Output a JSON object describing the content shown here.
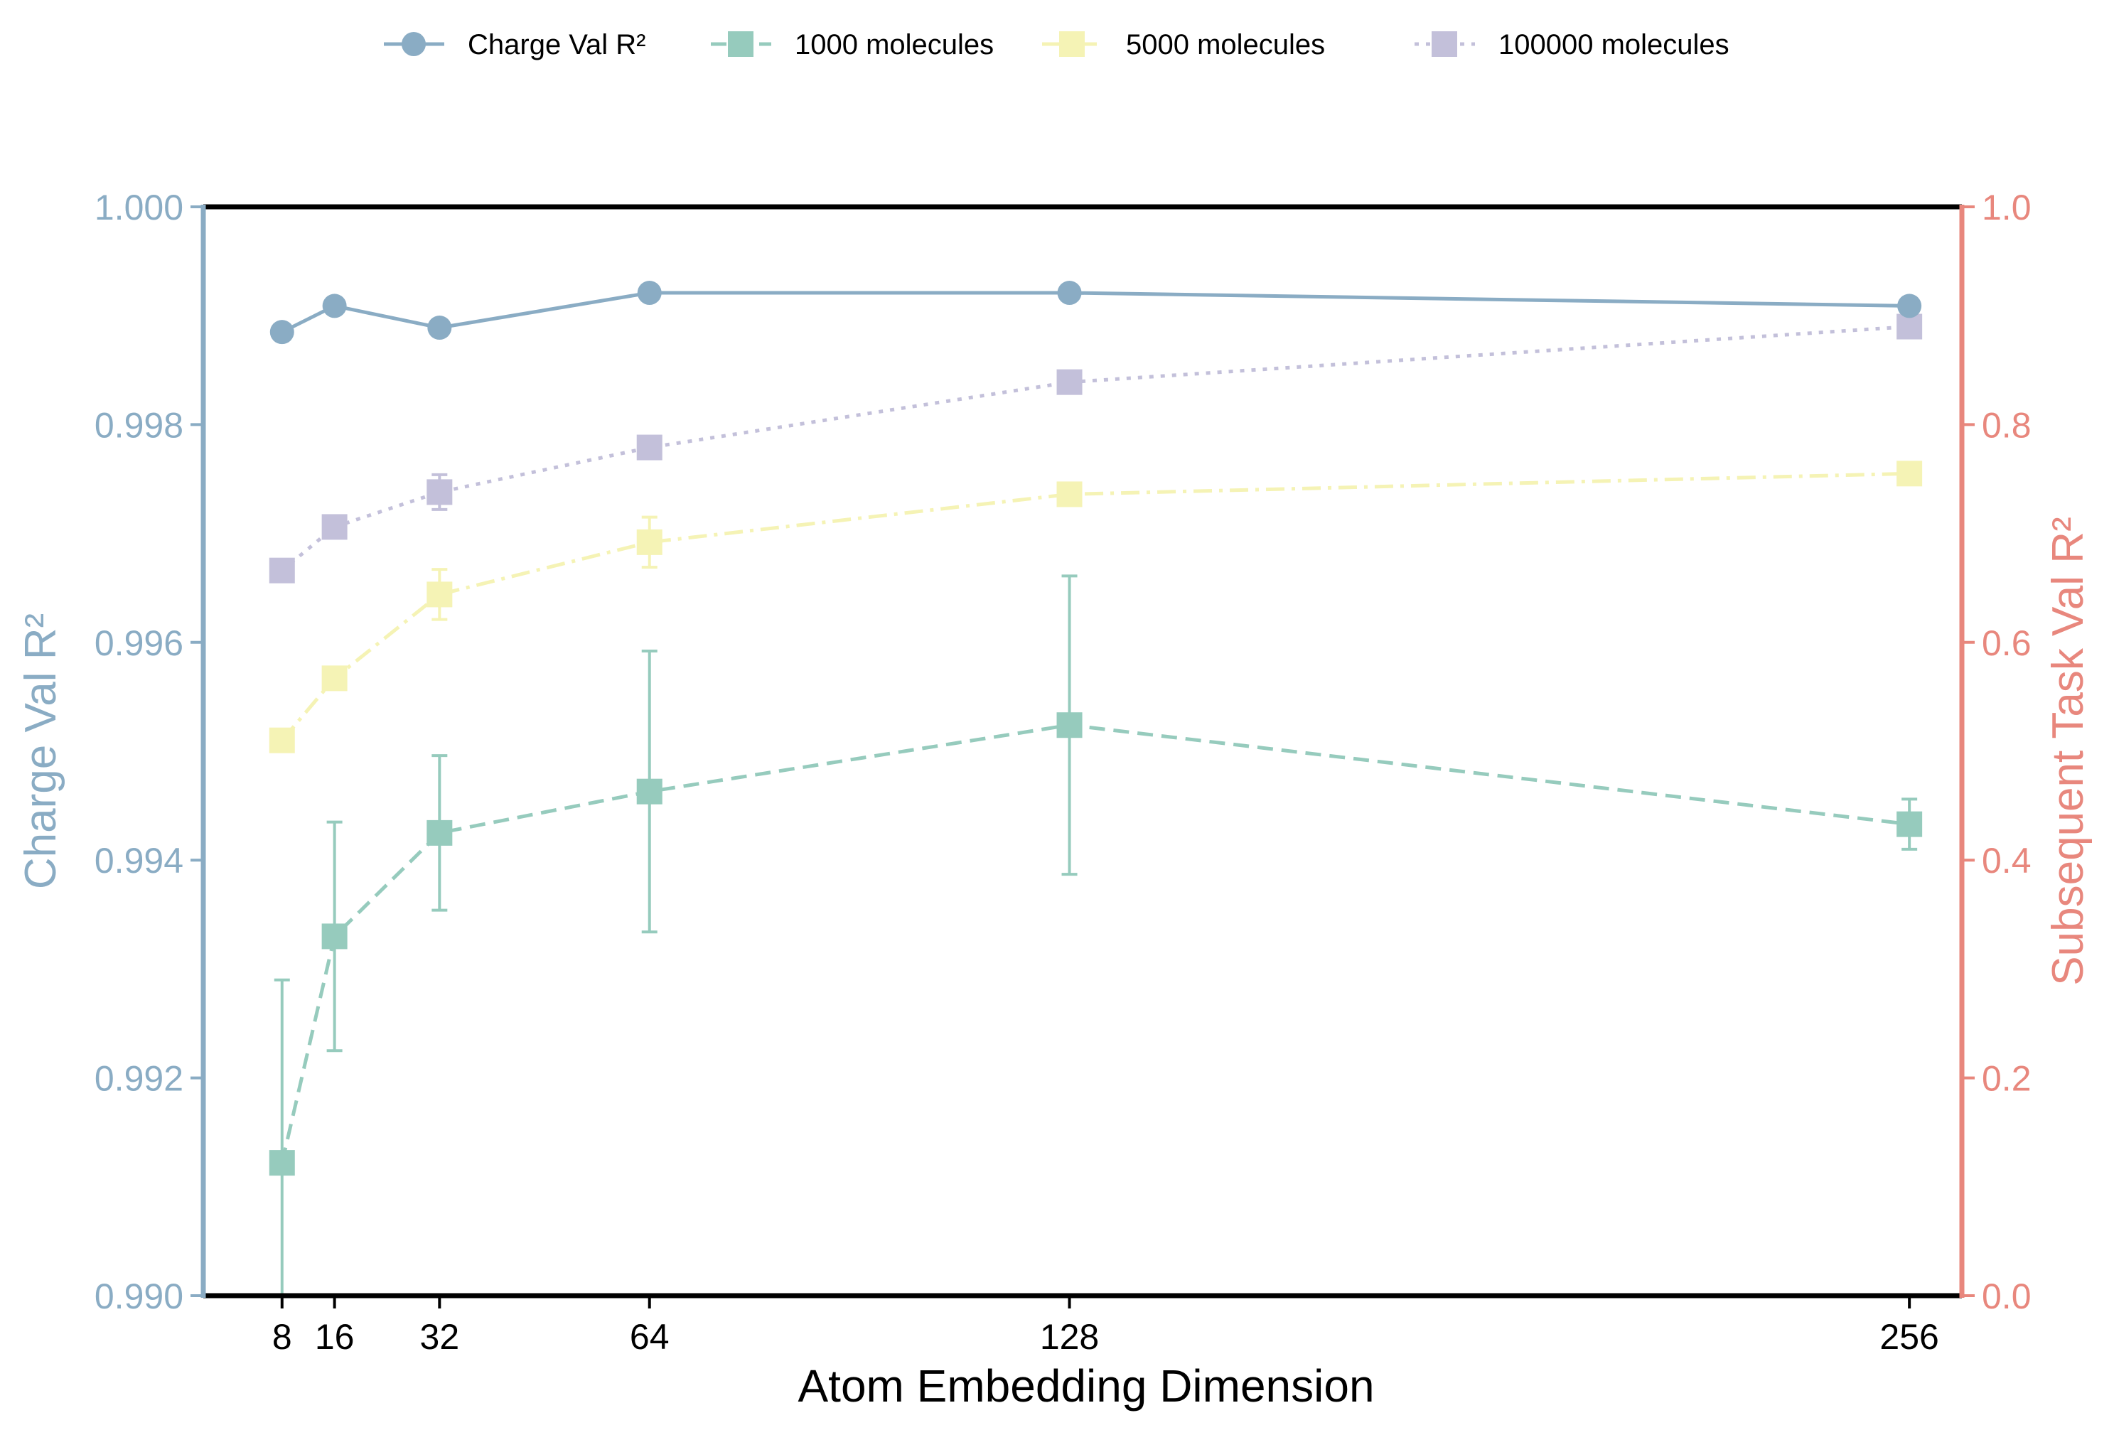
{
  "chart_data": {
    "type": "line",
    "title": "",
    "xlabel": "Atom Embedding Dimension",
    "ylabel_left": "Charge Val R²",
    "ylabel_right": "Subsequent Task Val R²",
    "x": [
      8,
      16,
      32,
      64,
      128,
      256
    ],
    "x_tick_labels": [
      "8",
      "16",
      "32",
      "64",
      "128",
      "256"
    ],
    "xlim": [
      -4,
      264
    ],
    "ylim_left": [
      0.99,
      1.0
    ],
    "ylim_right": [
      0.0,
      1.0
    ],
    "y_ticks_left": [
      "0.990",
      "0.992",
      "0.994",
      "0.996",
      "0.998",
      "1.000"
    ],
    "y_ticks_right": [
      "0.0",
      "0.2",
      "0.4",
      "0.6",
      "0.8",
      "1.0"
    ],
    "legend_position": "top-center",
    "grid": false,
    "colors": {
      "left_axis": "#8aacc4",
      "right_axis": "#e8877d",
      "charge": "#8aacc4",
      "m1000": "#96cbbd",
      "m5000": "#f5f3b5",
      "m100000": "#c3c0da",
      "frame": "#000000"
    },
    "series": [
      {
        "name": "Charge Val R²",
        "axis": "left",
        "marker": "circle",
        "dash": "solid",
        "color": "#8aacc4",
        "values": [
          0.99885,
          0.99909,
          0.99889,
          0.99921,
          0.99921,
          0.99909
        ]
      },
      {
        "name": "1000 molecules",
        "axis": "right",
        "marker": "square",
        "dash": "dashed",
        "color": "#96cbbd",
        "values": [
          0.122,
          0.33,
          0.425,
          0.463,
          0.524,
          0.433
        ],
        "errors": [
          0.168,
          0.105,
          0.071,
          0.129,
          0.137,
          0.023
        ]
      },
      {
        "name": "5000 molecules",
        "axis": "right",
        "marker": "square",
        "dash": "dashdot",
        "color": "#f5f3b5",
        "values": [
          0.51,
          0.567,
          0.644,
          0.692,
          0.736,
          0.755
        ],
        "errors": [
          0.01,
          0.008,
          0.023,
          0.023,
          0.005,
          0.005
        ]
      },
      {
        "name": "100000 molecules",
        "axis": "right",
        "marker": "square",
        "dash": "dotted",
        "color": "#c3c0da",
        "values": [
          0.666,
          0.706,
          0.738,
          0.779,
          0.839,
          0.89
        ],
        "errors": [
          0.005,
          0.005,
          0.016,
          0.005,
          0.005,
          0.005
        ]
      }
    ]
  }
}
